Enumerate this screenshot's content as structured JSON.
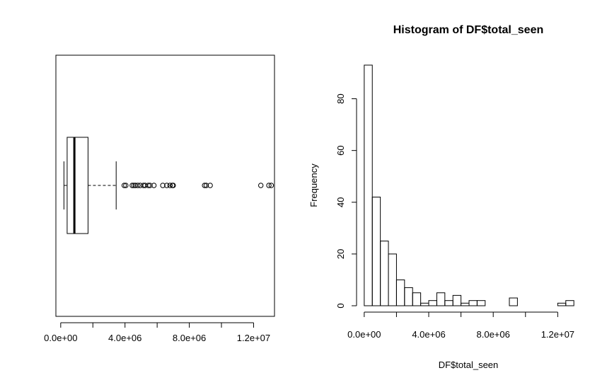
{
  "chart_data": [
    {
      "type": "boxplot",
      "orientation": "horizontal",
      "xlim": [
        -300000,
        13300000
      ],
      "x_ticks": [
        0,
        4000000,
        8000000,
        12000000
      ],
      "x_tick_labels": [
        "0.0e+00",
        "4.0e+06",
        "8.0e+06",
        "1.2e+07"
      ],
      "stats": {
        "min": 200000,
        "q1": 400000,
        "median": 850000,
        "q3": 1700000,
        "whisker_high": 3450000
      },
      "outliers": [
        3950000,
        4050000,
        4450000,
        4550000,
        4650000,
        4800000,
        4950000,
        5150000,
        5250000,
        5450000,
        5550000,
        5800000,
        6350000,
        6600000,
        6800000,
        6950000,
        7000000,
        8950000,
        9050000,
        9300000,
        12450000,
        12950000,
        13100000
      ],
      "grid": false
    },
    {
      "type": "histogram",
      "title": "Histogram of DF$total_seen",
      "xlabel": "DF$total_seen",
      "ylabel": "Frequency",
      "bin_width": 500000,
      "bin_start": 0,
      "counts": [
        93,
        42,
        25,
        20,
        10,
        7,
        5,
        1,
        2,
        5,
        2,
        4,
        1,
        2,
        2,
        0,
        0,
        0,
        3,
        0,
        0,
        0,
        0,
        0,
        1,
        2
      ],
      "xlim": [
        -300000,
        13300000
      ],
      "ylim": [
        0,
        93
      ],
      "x_ticks": [
        0,
        4000000,
        8000000,
        12000000
      ],
      "x_tick_labels": [
        "0.0e+00",
        "4.0e+06",
        "8.0e+06",
        "1.2e+07"
      ],
      "y_ticks": [
        0,
        20,
        40,
        60,
        80
      ],
      "y_tick_labels": [
        "0",
        "20",
        "40",
        "60",
        "80"
      ],
      "grid": false
    }
  ]
}
